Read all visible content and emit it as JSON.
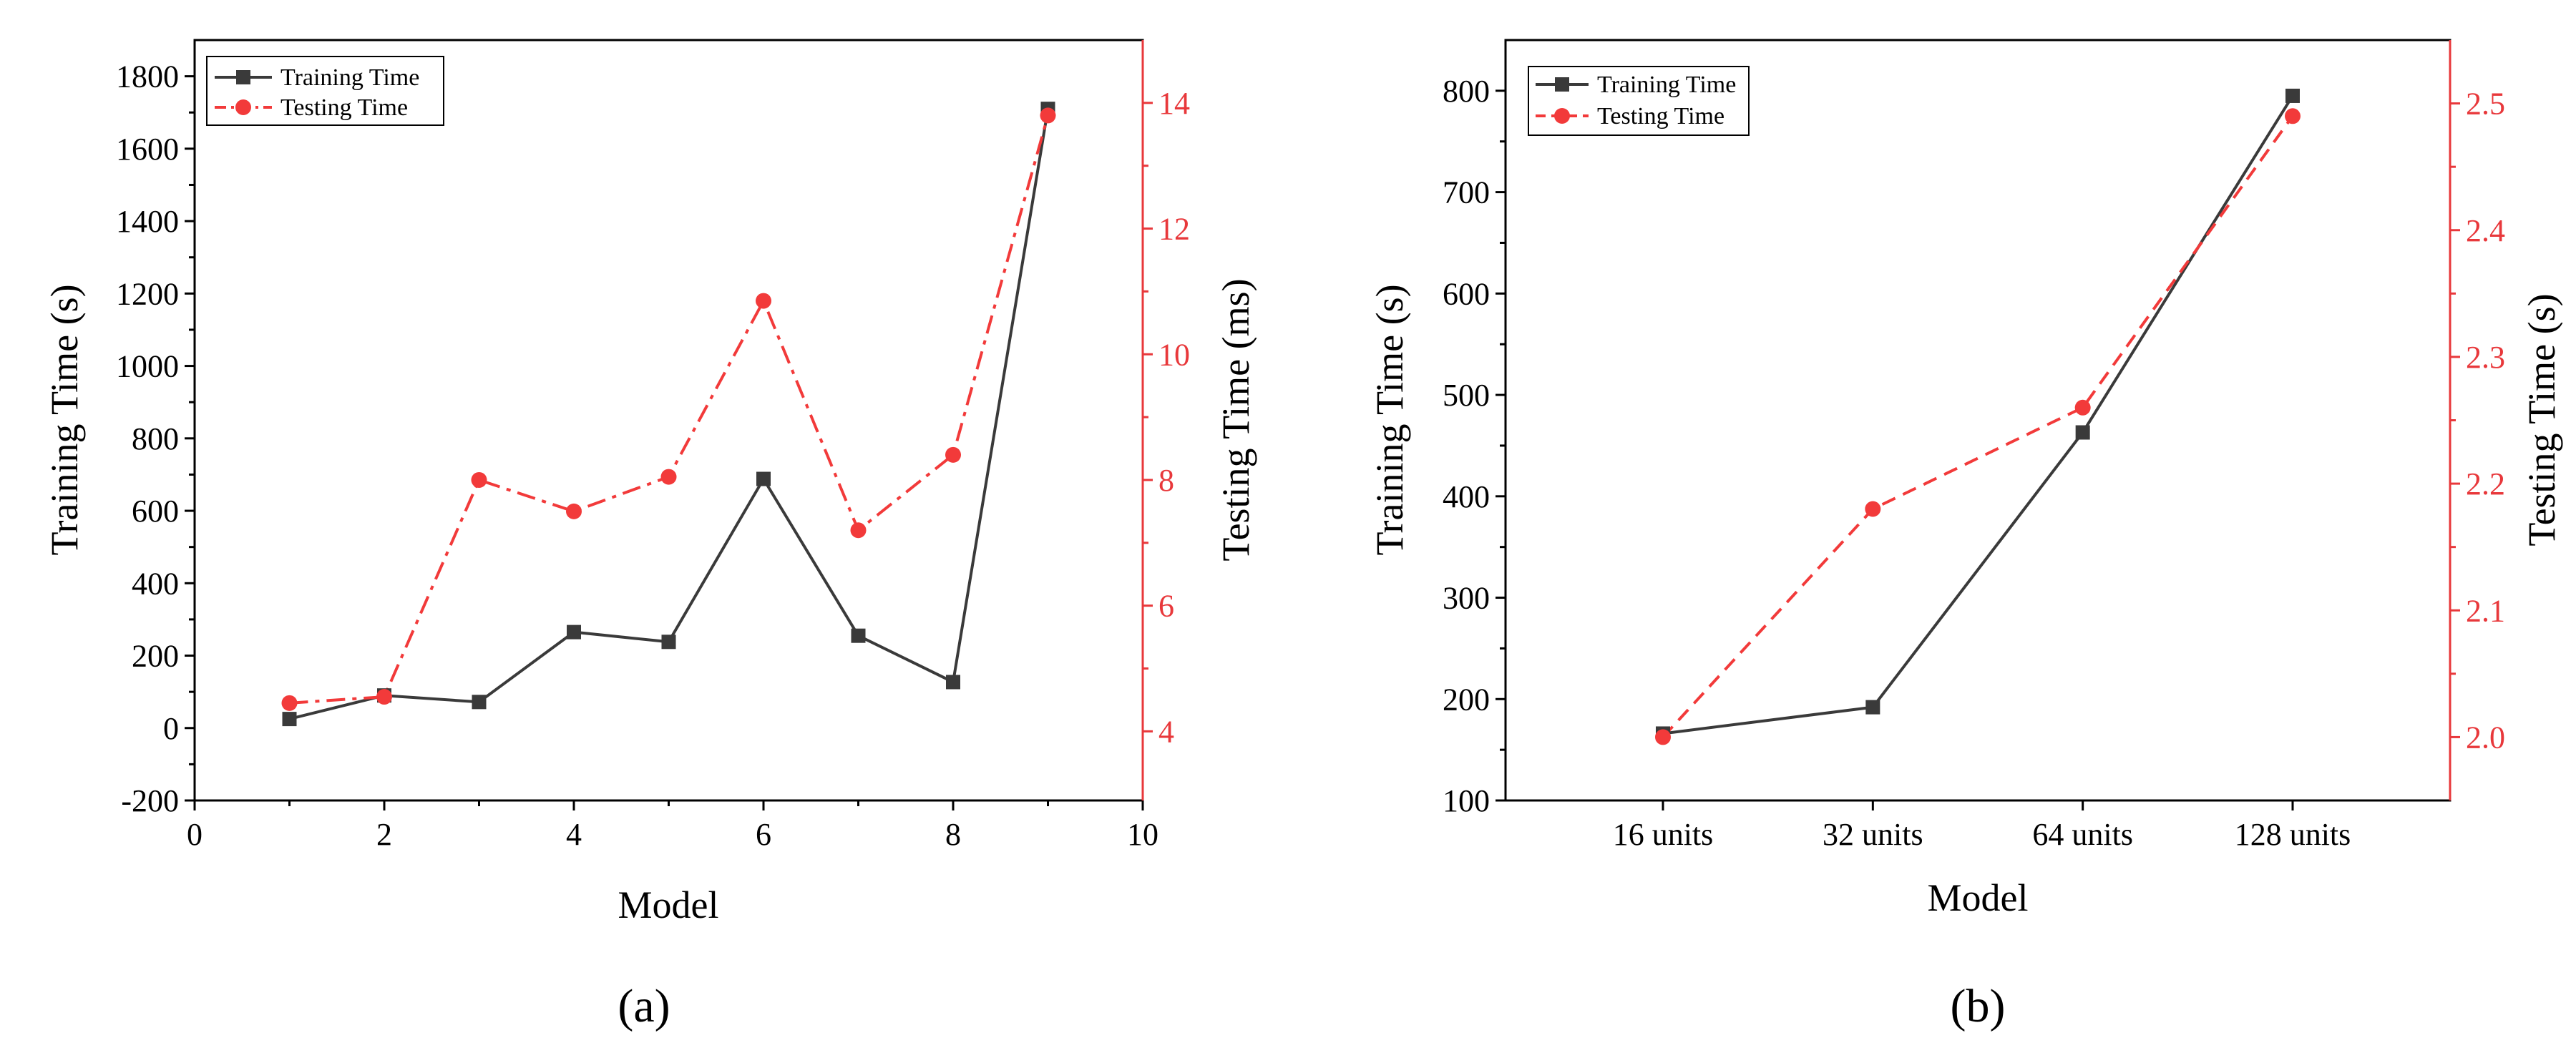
{
  "colors": {
    "train": "#3a3a3a",
    "test": "#f23a3a",
    "axis_red": "#e8383b"
  },
  "chart_data": [
    {
      "panel_label": "(a)",
      "type": "line",
      "xlabel": "Model",
      "ylabel": "Training Time (s)",
      "y2label": "Testing Time (ms)",
      "xlim": [
        0,
        10
      ],
      "xticks": [
        0,
        2,
        4,
        6,
        8,
        10
      ],
      "xtick_labels": [
        "0",
        "2",
        "4",
        "6",
        "8",
        "10"
      ],
      "ylim": [
        -200,
        1900
      ],
      "yticks": [
        -200,
        0,
        200,
        400,
        600,
        800,
        1000,
        1200,
        1400,
        1600,
        1800
      ],
      "ytick_labels": [
        "-200",
        "0",
        "200",
        "400",
        "600",
        "800",
        "1000",
        "1200",
        "1400",
        "1600",
        "1800"
      ],
      "y2lim": [
        2.9,
        15
      ],
      "y2ticks": [
        4,
        6,
        8,
        10,
        12,
        14
      ],
      "y2tick_labels": [
        "4",
        "6",
        "8",
        "10",
        "12",
        "14"
      ],
      "legend_position": "top-left",
      "x": [
        1,
        2,
        3,
        4,
        5,
        6,
        7,
        8,
        9
      ],
      "series": [
        {
          "name": "Training Time",
          "axis": "left",
          "style": "solid",
          "marker": "square",
          "values": [
            25,
            90,
            72,
            265,
            238,
            688,
            255,
            127,
            1710
          ]
        },
        {
          "name": "Testing Time",
          "axis": "right",
          "style": "dash-dot",
          "marker": "circle",
          "values": [
            4.45,
            4.55,
            8.0,
            7.5,
            8.05,
            10.85,
            7.2,
            8.4,
            13.8
          ]
        }
      ]
    },
    {
      "panel_label": "(b)",
      "type": "line",
      "xlabel": "Model",
      "ylabel": "Training Time (s)",
      "y2label": "Testing Time (s)",
      "categories": [
        "16 units",
        "32 units",
        "64 units",
        "128 units"
      ],
      "ylim": [
        100,
        850
      ],
      "yticks": [
        100,
        200,
        300,
        400,
        500,
        600,
        700,
        800
      ],
      "ytick_labels": [
        "100",
        "200",
        "300",
        "400",
        "500",
        "600",
        "700",
        "800"
      ],
      "y2lim": [
        1.95,
        2.55
      ],
      "y2ticks": [
        2.0,
        2.1,
        2.2,
        2.3,
        2.4,
        2.5
      ],
      "y2tick_labels": [
        "2.0",
        "2.1",
        "2.2",
        "2.3",
        "2.4",
        "2.5"
      ],
      "legend_position": "top-left",
      "series": [
        {
          "name": "Training Time",
          "axis": "left",
          "style": "solid",
          "marker": "square",
          "values": [
            166,
            192,
            463,
            795
          ]
        },
        {
          "name": "Testing Time",
          "axis": "right",
          "style": "dashed",
          "marker": "circle",
          "values": [
            2.0,
            2.18,
            2.26,
            2.49
          ]
        }
      ]
    }
  ]
}
